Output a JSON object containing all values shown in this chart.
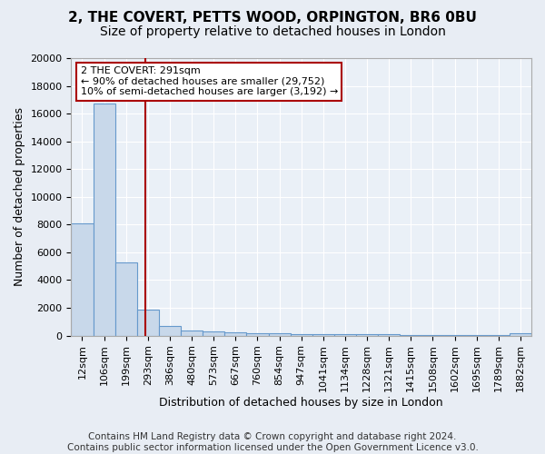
{
  "title": "2, THE COVERT, PETTS WOOD, ORPINGTON, BR6 0BU",
  "subtitle": "Size of property relative to detached houses in London",
  "xlabel": "Distribution of detached houses by size in London",
  "ylabel": "Number of detached properties",
  "bar_labels": [
    "12sqm",
    "106sqm",
    "199sqm",
    "293sqm",
    "386sqm",
    "480sqm",
    "573sqm",
    "667sqm",
    "760sqm",
    "854sqm",
    "947sqm",
    "1041sqm",
    "1134sqm",
    "1228sqm",
    "1321sqm",
    "1415sqm",
    "1508sqm",
    "1602sqm",
    "1695sqm",
    "1789sqm",
    "1882sqm"
  ],
  "bar_values": [
    8100,
    16700,
    5300,
    1850,
    700,
    350,
    270,
    210,
    170,
    140,
    120,
    100,
    90,
    80,
    75,
    70,
    65,
    60,
    55,
    50,
    200
  ],
  "bar_color": "#c8d8ea",
  "bar_edge_color": "#6699cc",
  "vline_x_index": 2.88,
  "vline_color": "#aa0000",
  "annotation_text": "2 THE COVERT: 291sqm\n← 90% of detached houses are smaller (29,752)\n10% of semi-detached houses are larger (3,192) →",
  "annotation_box_color": "#ffffff",
  "annotation_box_edge_color": "#aa0000",
  "ylim": [
    0,
    20000
  ],
  "yticks": [
    0,
    2000,
    4000,
    6000,
    8000,
    10000,
    12000,
    14000,
    16000,
    18000,
    20000
  ],
  "footnote": "Contains HM Land Registry data © Crown copyright and database right 2024.\nContains public sector information licensed under the Open Government Licence v3.0.",
  "background_color": "#e8edf4",
  "plot_bg_color": "#eaf0f7",
  "grid_color": "#ffffff",
  "title_fontsize": 11,
  "subtitle_fontsize": 10,
  "axis_fontsize": 9,
  "tick_fontsize": 8,
  "annotation_fontsize": 8,
  "footnote_fontsize": 7.5
}
